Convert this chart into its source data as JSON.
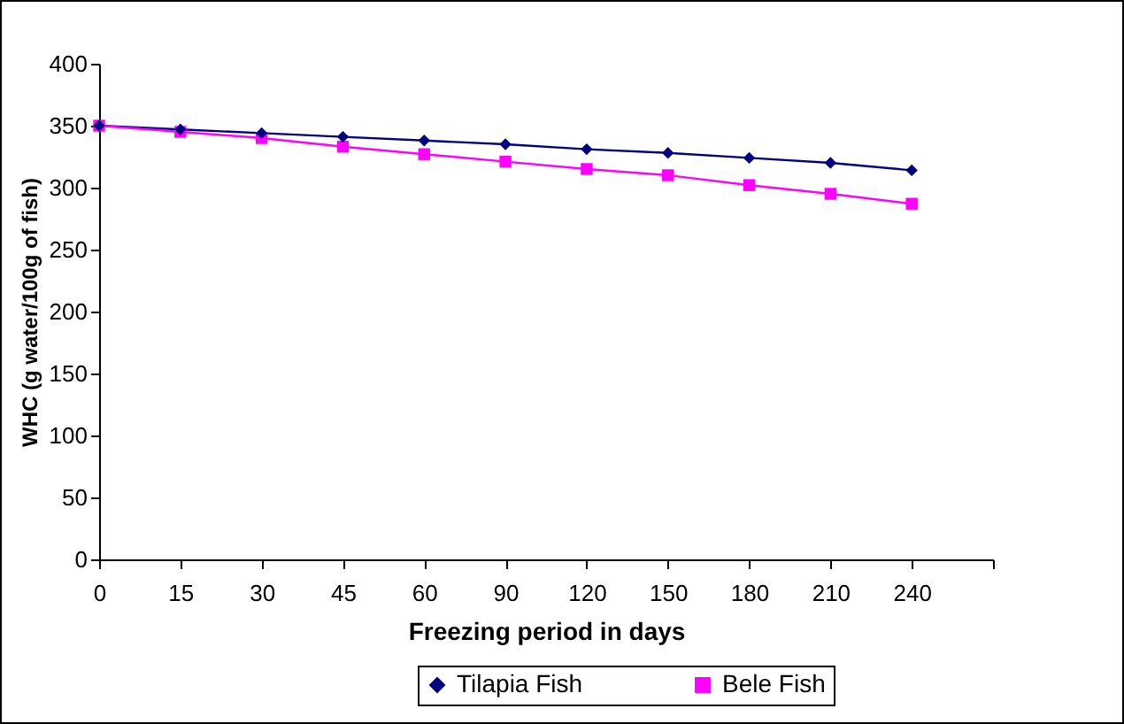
{
  "chart_data": {
    "type": "line",
    "xlabel": "Freezing period in days",
    "ylabel": "WHC (g water/100g of fish)",
    "categories": [
      "0",
      "15",
      "30",
      "45",
      "60",
      "90",
      "120",
      "150",
      "180",
      "210",
      "240",
      null
    ],
    "series": [
      {
        "name": "Tilapia Fish",
        "color": "#000080",
        "marker": "diamond",
        "values": [
          350,
          347,
          344,
          341,
          338,
          335,
          331,
          328,
          324,
          320,
          314,
          null
        ]
      },
      {
        "name": "Bele Fish",
        "color": "#ff00ff",
        "marker": "square",
        "values": [
          350,
          345,
          340,
          333,
          327,
          321,
          315,
          310,
          302,
          295,
          287,
          null
        ]
      }
    ],
    "ylim": [
      0,
      400
    ],
    "yticks": [
      0,
      50,
      100,
      150,
      200,
      250,
      300,
      350,
      400
    ],
    "grid": false,
    "legend": "bottom",
    "line_style": "solid"
  }
}
